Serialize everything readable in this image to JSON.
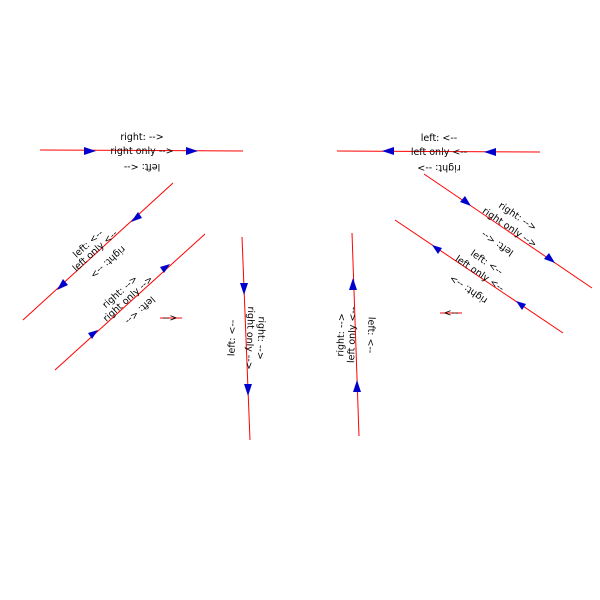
{
  "colors": {
    "line": "#ff0000",
    "arrow": "#0000cc",
    "text": "#000000",
    "background": "#ffffff"
  },
  "labels": {
    "top_left": {
      "above": "right: -->",
      "on": "right only -->",
      "below": "left: <--"
    },
    "top_right": {
      "above": "left: <--",
      "on": "left only <--",
      "below": "right: -->"
    },
    "diag_l1": {
      "above": "left: <--",
      "on": "left only <--",
      "below": "right: -->"
    },
    "diag_l2": {
      "above": "right: -->",
      "on": "right only -->",
      "below": "left: <--"
    },
    "vert_left": {
      "above": "left: <--",
      "on": "right only -->",
      "below": "right: -->"
    },
    "vert_right": {
      "above": "right: -->",
      "on": "left only <--",
      "below": "left: <--"
    },
    "diag_r1": {
      "above": "right: -->",
      "on": "right only -->",
      "below": "left: <--"
    },
    "diag_r2": {
      "above": "left: <--",
      "on": "left only <--",
      "below": "right: -->"
    },
    "small_left": "-->",
    "small_right": "<--"
  }
}
